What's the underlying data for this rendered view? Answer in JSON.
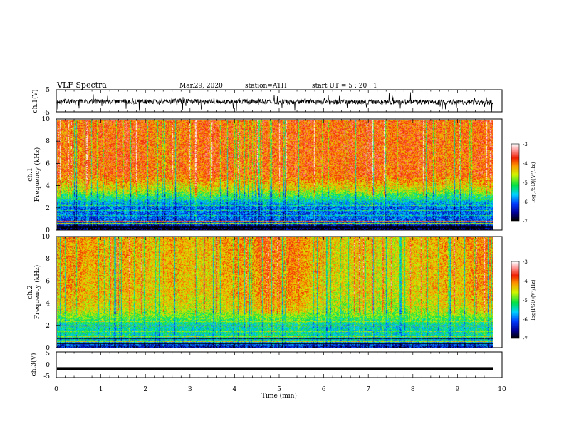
{
  "header": {
    "title": "VLF  Spectra",
    "date": "Mar.29, 2020",
    "station": "station=ATH",
    "start": "start  UT  =   5  : 20 : 1"
  },
  "chart_data": {
    "type": "heatmap",
    "xlabel": "Time  (min)",
    "x_ticks": [
      "0",
      "1",
      "2",
      "3",
      "4",
      "5",
      "6",
      "7",
      "8",
      "9",
      "10"
    ],
    "xlim": [
      0,
      10
    ],
    "data_end_min": 9.8,
    "panels": [
      {
        "id": "ch1-waveform",
        "type": "line",
        "ylabel": "ch.1(V)",
        "ylim": [
          -5,
          5
        ],
        "y_ticks": [
          "5",
          "-5"
        ]
      },
      {
        "id": "ch1-spectrogram",
        "type": "heatmap",
        "ylabel_line1": "ch.1",
        "ylabel_line2": "Frequency  (kHz)",
        "ylim": [
          0,
          10
        ],
        "y_ticks": [
          "0",
          "2",
          "4",
          "6",
          "8",
          "10"
        ],
        "colorbar": {
          "label": "log(PSD)(V²/Hz)",
          "ticks": [
            "-3",
            "-4",
            "-5",
            "-6",
            "-7"
          ],
          "range": [
            -7,
            -3
          ]
        },
        "band_profile": [
          {
            "f": 0.0,
            "level": -6.9
          },
          {
            "f": 0.5,
            "level": -6.3
          },
          {
            "f": 1.0,
            "level": -6.0
          },
          {
            "f": 2.0,
            "level": -6.0
          },
          {
            "f": 3.0,
            "level": -5.2
          },
          {
            "f": 3.6,
            "level": -4.6
          },
          {
            "f": 5.0,
            "level": -3.9
          },
          {
            "f": 10.0,
            "level": -3.9
          }
        ]
      },
      {
        "id": "ch2-spectrogram",
        "type": "heatmap",
        "ylabel_line1": "ch.2",
        "ylabel_line2": "Frequency  (kHz)",
        "ylim": [
          0,
          10
        ],
        "y_ticks": [
          "0",
          "2",
          "4",
          "6",
          "8",
          "10"
        ],
        "colorbar": {
          "label": "log(PSD)(V²/Hz)",
          "ticks": [
            "-3",
            "-4",
            "-5",
            "-6",
            "-7"
          ],
          "range": [
            -7,
            -3
          ]
        },
        "band_profile": [
          {
            "f": 0.0,
            "level": -6.4
          },
          {
            "f": 0.8,
            "level": -5.4
          },
          {
            "f": 2.0,
            "level": -5.4
          },
          {
            "f": 2.6,
            "level": -5.0
          },
          {
            "f": 3.5,
            "level": -4.5
          },
          {
            "f": 5.0,
            "level": -4.3
          },
          {
            "f": 10.0,
            "level": -4.2
          }
        ]
      },
      {
        "id": "ch3-waveform",
        "type": "line",
        "ylabel": "ch.3(V)",
        "ylim": [
          -5,
          5
        ],
        "y_ticks": [
          "5",
          "0",
          "-5"
        ],
        "level": -1.5
      }
    ]
  }
}
